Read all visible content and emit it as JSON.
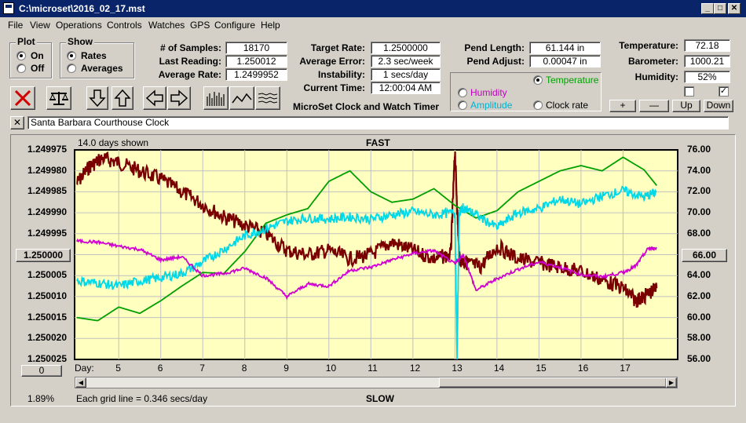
{
  "window": {
    "title": "C:\\microset\\2016_02_17.mst"
  },
  "menu": [
    "File",
    "View",
    "Operations",
    "Controls",
    "Watches",
    "GPS",
    "Configure",
    "Help"
  ],
  "plot_group": {
    "title": "Plot",
    "on_label": "On",
    "off_label": "Off",
    "selected": "On"
  },
  "show_group": {
    "title": "Show",
    "rates_label": "Rates",
    "averages_label": "Averages",
    "selected": "Rates"
  },
  "stats": {
    "samples_label": "# of Samples:",
    "samples_value": "18170",
    "last_reading_label": "Last Reading:",
    "last_reading_value": "1.250012",
    "average_rate_label": "Average Rate:",
    "average_rate_value": "1.2499952",
    "target_rate_label": "Target Rate:",
    "target_rate_value": "1.2500000",
    "average_error_label": "Average Error:",
    "average_error_value": "2.3 sec/week",
    "instability_label": "Instability:",
    "instability_value": "1 secs/day",
    "current_time_label": "Current Time:",
    "current_time_value": "12:00:04 AM",
    "app_caption": "MicroSet Clock and Watch Timer",
    "pend_length_label": "Pend Length:",
    "pend_length_value": "61.144 in",
    "pend_adjust_label": "Pend Adjust:",
    "pend_adjust_value": "0.00047 in",
    "temperature_label": "Temperature:",
    "temperature_value": "72.18",
    "barometer_label": "Barometer:",
    "barometer_value": "1000.21",
    "humidity_label": "Humidity:",
    "humidity_value": "52%"
  },
  "sensor_select": {
    "temperature_label": "Temperature",
    "humidity_label": "Humidity",
    "amplitude_label": "Amplitude",
    "clock_rate_label": "Clock rate",
    "selected": "Temperature",
    "temperature_color": "#00a000",
    "humidity_color": "#c000c0",
    "amplitude_color": "#00b0d0"
  },
  "scale_buttons": {
    "plus": "+",
    "minus": "—",
    "up": "Up",
    "down": "Down"
  },
  "toolbar_icons": [
    "close-x-icon",
    "balance-icon",
    "down-arrow-icon",
    "up-arrow-icon",
    "left-arrow-icon",
    "right-arrow-icon",
    "bars-icon",
    "wave-icon",
    "lines-icon"
  ],
  "description_field": {
    "clear": "✕",
    "value": "Santa Barbara Courthouse Clock"
  },
  "chart_data": {
    "type": "line",
    "title": "FAST",
    "bottom_label": "SLOW",
    "days_shown": "14.0 days shown",
    "grid_info": "Each grid line = 0.346 secs/day",
    "percent": "1.89%",
    "x_axis_label": "Day:",
    "x_ticks": [
      "5",
      "6",
      "7",
      "8",
      "9",
      "10",
      "11",
      "12",
      "13",
      "14",
      "15",
      "16",
      "17"
    ],
    "y_left_ticks": [
      "1.249975",
      "1.249980",
      "1.249985",
      "1.249990",
      "1.249995",
      "1.250000",
      "1.250005",
      "1.250010",
      "1.250015",
      "1.250020",
      "1.250025"
    ],
    "y_left_center_button": "1.250000",
    "y_left_ylim": [
      1.249975,
      1.250025
    ],
    "y_right_ticks": [
      "76.00",
      "74.00",
      "72.00",
      "70.00",
      "68.00",
      "66.00",
      "64.00",
      "62.00",
      "60.00",
      "58.00",
      "56.00"
    ],
    "y_right_center_button": "66.00",
    "y_right_ylim": [
      56,
      76
    ],
    "bottom_left_button": "0",
    "series": [
      {
        "color": "#7a0000",
        "axis": "left",
        "x": [
          4.0,
          4.3,
          4.6,
          5.0,
          5.5,
          6.0,
          6.5,
          7.0,
          7.5,
          8.0,
          8.5,
          9.0,
          9.5,
          10.0,
          10.5,
          11.0,
          11.5,
          12.0,
          12.5,
          12.9,
          13.0,
          13.1,
          13.3,
          13.6,
          14.0,
          14.5,
          15.0,
          15.5,
          16.0,
          16.5,
          17.0,
          17.3,
          17.5,
          17.8
        ],
        "y": [
          1.249983,
          1.249979,
          1.249977,
          1.249978,
          1.24998,
          1.249982,
          1.249985,
          1.249988,
          1.249991,
          1.249993,
          1.249995,
          1.249999,
          1.25,
          1.249999,
          1.250001,
          1.25,
          1.249997,
          1.249999,
          1.250001,
          1.25,
          1.249975,
          1.250001,
          1.250002,
          1.250003,
          1.249998,
          1.250001,
          1.250002,
          1.250003,
          1.250004,
          1.250006,
          1.250008,
          1.250011,
          1.25001,
          1.250008
        ]
      },
      {
        "color": "#00a000",
        "axis": "right",
        "x": [
          4.0,
          4.5,
          5.0,
          5.5,
          6.0,
          6.5,
          7.0,
          7.5,
          8.0,
          8.5,
          9.0,
          9.5,
          10.0,
          10.5,
          11.0,
          11.5,
          12.0,
          12.5,
          13.0,
          13.5,
          14.0,
          14.5,
          15.0,
          15.5,
          16.0,
          16.5,
          17.0,
          17.5,
          17.8
        ],
        "y": [
          60.0,
          59.7,
          61.0,
          60.4,
          61.6,
          63.0,
          64.3,
          64.2,
          66.3,
          69.0,
          69.8,
          70.4,
          73.0,
          74.0,
          72.0,
          71.0,
          71.3,
          72.3,
          70.7,
          69.5,
          70.2,
          72.0,
          73.0,
          74.0,
          74.5,
          74.0,
          75.3,
          74.1,
          72.6
        ]
      },
      {
        "color": "#00d8e8",
        "axis": "right",
        "x": [
          4.0,
          4.5,
          5.0,
          5.5,
          6.0,
          6.5,
          7.0,
          7.5,
          8.0,
          8.5,
          9.0,
          9.5,
          10.0,
          10.5,
          11.0,
          11.5,
          12.0,
          12.5,
          13.0,
          13.05,
          13.1,
          13.2,
          13.5,
          14.0,
          14.5,
          15.0,
          15.5,
          16.0,
          16.5,
          17.0,
          17.5,
          17.8
        ],
        "y": [
          63.5,
          63.3,
          63.0,
          63.5,
          63.8,
          64.2,
          65.3,
          66.5,
          67.8,
          68.5,
          69.2,
          69.5,
          69.4,
          69.6,
          69.4,
          69.8,
          70.1,
          69.8,
          70.0,
          56.0,
          70.0,
          70.5,
          69.8,
          68.6,
          70.0,
          70.4,
          71.3,
          70.8,
          71.6,
          72.1,
          71.5,
          72.0
        ]
      },
      {
        "color": "#d000d0",
        "axis": "right",
        "x": [
          4.0,
          4.5,
          5.0,
          5.5,
          6.0,
          6.5,
          7.0,
          7.5,
          8.0,
          8.5,
          9.0,
          9.5,
          10.0,
          10.5,
          11.0,
          11.5,
          12.0,
          12.5,
          13.0,
          13.2,
          13.5,
          14.0,
          14.5,
          15.0,
          15.5,
          16.0,
          16.5,
          17.0,
          17.3,
          17.6,
          17.8
        ],
        "y": [
          67.3,
          67.2,
          66.8,
          66.5,
          65.5,
          65.8,
          64.0,
          64.2,
          64.7,
          63.8,
          62.0,
          63.2,
          63.0,
          64.5,
          64.8,
          65.5,
          66.1,
          66.4,
          65.1,
          66.0,
          62.6,
          63.7,
          64.6,
          65.3,
          64.8,
          64.1,
          63.9,
          64.3,
          64.9,
          66.6,
          66.6
        ]
      }
    ]
  }
}
